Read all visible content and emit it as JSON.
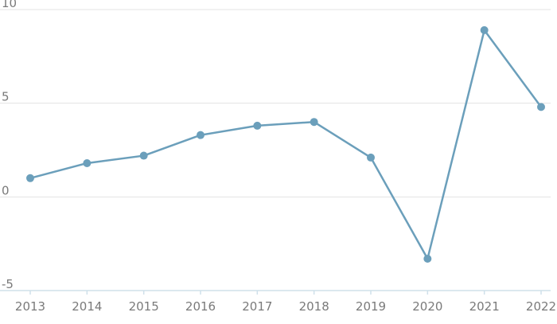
{
  "chart_data": {
    "type": "line",
    "title": "",
    "xlabel": "",
    "ylabel": "",
    "x": [
      "2013",
      "2014",
      "2015",
      "2016",
      "2017",
      "2018",
      "2019",
      "2020",
      "2021",
      "2022"
    ],
    "series": [
      {
        "values": [
          1.0,
          1.8,
          2.2,
          3.3,
          3.8,
          4.0,
          2.1,
          -3.3,
          8.9,
          4.8
        ]
      }
    ],
    "ylim": [
      -5,
      10
    ],
    "yticks": [
      -5,
      0,
      5,
      10
    ],
    "ytick_labels": [
      "-5",
      "0",
      "5",
      "10"
    ],
    "grid": true,
    "color": "#6b9fbb"
  }
}
